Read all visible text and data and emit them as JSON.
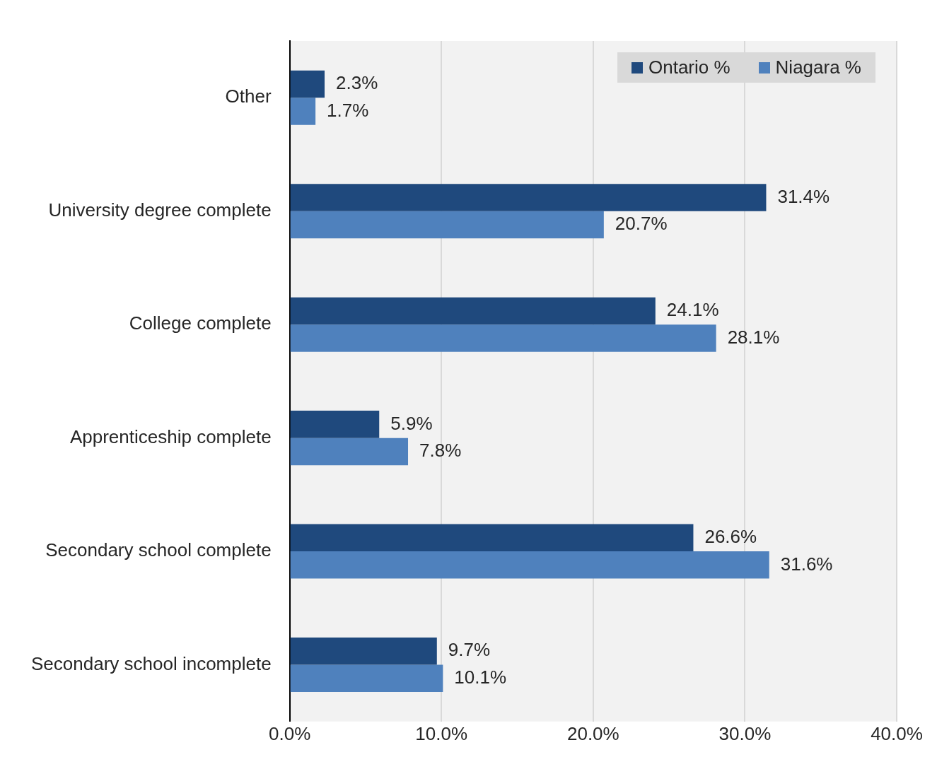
{
  "chart_data": {
    "type": "bar",
    "orientation": "horizontal",
    "categories": [
      "Other",
      "University degree complete",
      "College complete",
      "Apprenticeship complete",
      "Secondary school complete",
      "Secondary school incomplete"
    ],
    "series": [
      {
        "name": "Ontario %",
        "color": "#1f497d",
        "values": [
          2.3,
          31.4,
          24.1,
          5.9,
          26.6,
          9.7
        ],
        "value_labels": [
          "2.3%",
          "31.4%",
          "24.1%",
          "5.9%",
          "26.6%",
          "9.7%"
        ]
      },
      {
        "name": "Niagara %",
        "color": "#4f81bd",
        "values": [
          1.7,
          20.7,
          28.1,
          7.8,
          31.6,
          10.1
        ],
        "value_labels": [
          "1.7%",
          "20.7%",
          "28.1%",
          "7.8%",
          "31.6%",
          "10.1%"
        ]
      }
    ],
    "xlim": [
      0,
      40
    ],
    "xticks": [
      {
        "value": 0,
        "label": "0.0%"
      },
      {
        "value": 10,
        "label": "10.0%"
      },
      {
        "value": 20,
        "label": "20.0%"
      },
      {
        "value": 30,
        "label": "30.0%"
      },
      {
        "value": 40,
        "label": "40.0%"
      }
    ],
    "grid": "x",
    "legend": "top right"
  }
}
